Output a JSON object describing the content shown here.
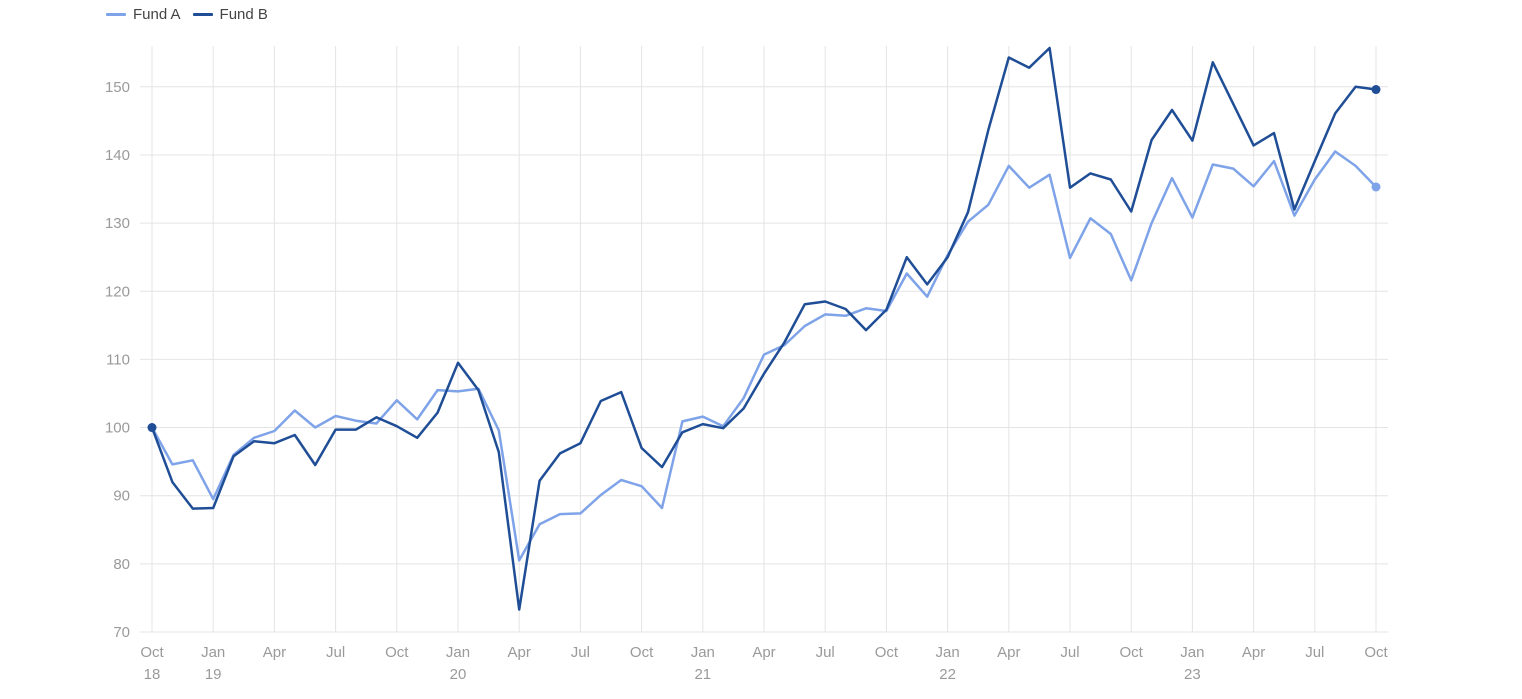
{
  "chart_data": {
    "type": "line",
    "legend": {
      "placement": "top-left"
    },
    "grid": true,
    "ylim": [
      70,
      155
    ],
    "y_ticks": [
      70,
      80,
      90,
      100,
      110,
      120,
      130,
      140,
      150
    ],
    "x_tick_labels": [
      {
        "month": "Oct",
        "year": "18"
      },
      {
        "month": "Jan",
        "year": "19"
      },
      {
        "month": "Apr",
        "year": ""
      },
      {
        "month": "Jul",
        "year": ""
      },
      {
        "month": "Oct",
        "year": ""
      },
      {
        "month": "Jan",
        "year": "20"
      },
      {
        "month": "Apr",
        "year": ""
      },
      {
        "month": "Jul",
        "year": ""
      },
      {
        "month": "Oct",
        "year": ""
      },
      {
        "month": "Jan",
        "year": "21"
      },
      {
        "month": "Apr",
        "year": ""
      },
      {
        "month": "Jul",
        "year": ""
      },
      {
        "month": "Oct",
        "year": ""
      },
      {
        "month": "Jan",
        "year": "22"
      },
      {
        "month": "Apr",
        "year": ""
      },
      {
        "month": "Jul",
        "year": ""
      },
      {
        "month": "Oct",
        "year": ""
      },
      {
        "month": "Jan",
        "year": "23"
      },
      {
        "month": "Apr",
        "year": ""
      },
      {
        "month": "Jul",
        "year": ""
      },
      {
        "month": "Oct",
        "year": ""
      }
    ],
    "x": [
      "2018-10",
      "2018-11",
      "2018-12",
      "2019-01",
      "2019-02",
      "2019-03",
      "2019-04",
      "2019-05",
      "2019-06",
      "2019-07",
      "2019-08",
      "2019-09",
      "2019-10",
      "2019-11",
      "2019-12",
      "2020-01",
      "2020-02",
      "2020-03",
      "2020-04",
      "2020-05",
      "2020-06",
      "2020-07",
      "2020-08",
      "2020-09",
      "2020-10",
      "2020-11",
      "2020-12",
      "2021-01",
      "2021-02",
      "2021-03",
      "2021-04",
      "2021-05",
      "2021-06",
      "2021-07",
      "2021-08",
      "2021-09",
      "2021-10",
      "2021-11",
      "2021-12",
      "2022-01",
      "2022-02",
      "2022-03",
      "2022-04",
      "2022-05",
      "2022-06",
      "2022-07",
      "2022-08",
      "2022-09",
      "2022-10",
      "2022-11",
      "2022-12",
      "2023-01",
      "2023-02",
      "2023-03",
      "2023-04",
      "2023-05",
      "2023-06",
      "2023-07",
      "2023-08",
      "2023-09",
      "2023-10"
    ],
    "series": [
      {
        "name": "Fund A",
        "color": "#7fa3e8",
        "values": [
          100,
          94.6,
          95.2,
          89.5,
          96,
          98.5,
          99.5,
          102.5,
          100,
          101.7,
          101,
          100.6,
          104,
          101.2,
          105.5,
          105.3,
          105.7,
          99.6,
          80.5,
          85.8,
          87.3,
          87.4,
          90.1,
          92.3,
          91.4,
          88.2,
          100.9,
          101.6,
          100.2,
          104.3,
          110.7,
          112.1,
          114.9,
          116.6,
          116.4,
          117.5,
          117.1,
          122.6,
          119.2,
          125.3,
          130.2,
          132.7,
          138.4,
          135.2,
          137.1,
          124.9,
          130.7,
          128.4,
          121.6,
          130,
          136.6,
          130.8,
          138.6,
          138,
          135.4,
          139.1,
          131.1,
          136.4,
          140.5,
          138.4,
          135.3
        ]
      },
      {
        "name": "Fund B",
        "color": "#1f4e96",
        "values": [
          100,
          92,
          88.1,
          88.2,
          95.8,
          98,
          97.7,
          98.9,
          94.5,
          99.7,
          99.7,
          101.5,
          100.2,
          98.5,
          102.2,
          109.5,
          105.5,
          96.4,
          73.3,
          92.2,
          96.2,
          97.7,
          103.9,
          105.2,
          97,
          94.2,
          99.3,
          100.5,
          99.9,
          102.8,
          107.9,
          112.5,
          118.1,
          118.5,
          117.4,
          114.3,
          117.3,
          125,
          121,
          125,
          131.6,
          143.7,
          154.3,
          152.8,
          155.7,
          135.2,
          137.3,
          136.4,
          131.7,
          142.2,
          146.6,
          142.1,
          153.6,
          147.5,
          141.4,
          143.2,
          132,
          139.1,
          146.1,
          150,
          149.6
        ]
      }
    ]
  }
}
